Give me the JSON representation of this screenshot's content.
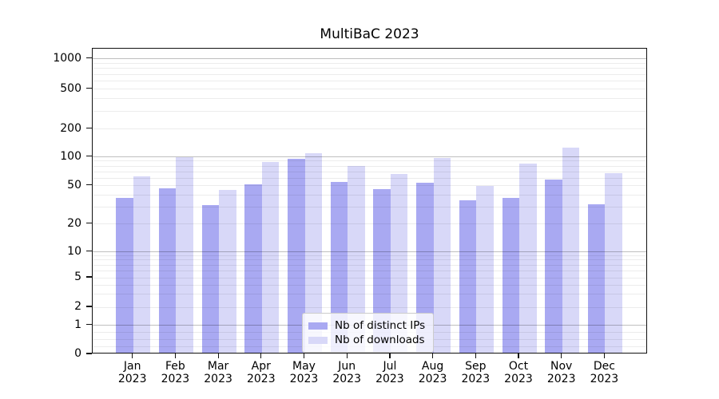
{
  "title": "MultiBaC 2023",
  "legend": {
    "items": [
      {
        "label": "Nb of distinct IPs",
        "color": "#a9a9f2"
      },
      {
        "label": "Nb of downloads",
        "color": "#d8d8f8"
      }
    ]
  },
  "chart_data": {
    "type": "bar",
    "title": "MultiBaC 2023",
    "categories": [
      "Jan",
      "Feb",
      "Mar",
      "Apr",
      "May",
      "Jun",
      "Jul",
      "Aug",
      "Sep",
      "Oct",
      "Nov",
      "Dec"
    ],
    "category_year": "2023",
    "series": [
      {
        "name": "Nb of distinct IPs",
        "color": "#a9a9f2",
        "values": [
          36,
          45,
          30,
          50,
          91,
          52,
          44,
          51,
          34,
          36,
          56,
          31
        ]
      },
      {
        "name": "Nb of downloads",
        "color": "#d8d8f8",
        "values": [
          60,
          96,
          43,
          85,
          106,
          77,
          64,
          94,
          48,
          82,
          120,
          65
        ]
      }
    ],
    "yscale": "symlog",
    "ytick_labels": [
      "0",
      "1",
      "2",
      "5",
      "10",
      "20",
      "50",
      "100",
      "200",
      "500",
      "1000"
    ],
    "ylim": [
      0,
      1400
    ],
    "grid": "horizontal",
    "legend_position": "lower center"
  }
}
